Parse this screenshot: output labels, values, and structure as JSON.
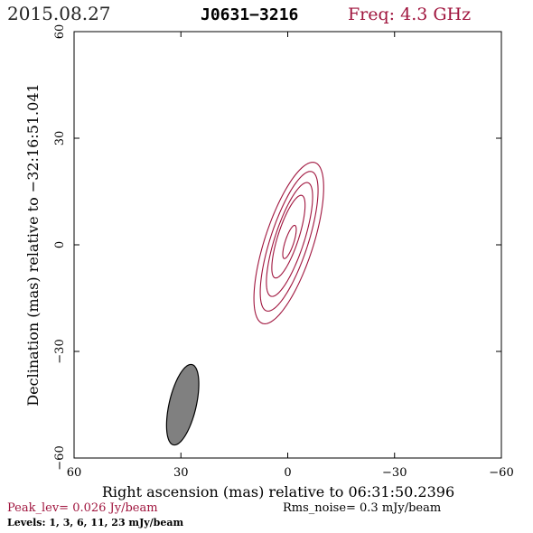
{
  "header": {
    "date": "2015.08.27",
    "source": "J0631−3216",
    "frequency": "Freq: 4.3 GHz"
  },
  "footer": {
    "peak": "Peak_lev=  0.026 Jy/beam",
    "rms": "Rms_noise=  0.3 mJy/beam",
    "levels": "Levels:   1,   3,   6,  11,  23 mJy/beam"
  },
  "colors": {
    "contour": "#a0153e",
    "beam_fill": "#808080",
    "axes": "#000000"
  },
  "chart_data": {
    "type": "contour",
    "xlabel": "Right ascension (mas) relative to 06:31:50.2396",
    "ylabel": "Declination (mas) relative to −32:16:51.041",
    "xlim": [
      60,
      -60
    ],
    "ylim": [
      -60,
      60
    ],
    "x_ticks": [
      60,
      30,
      0,
      -30,
      -60
    ],
    "y_ticks": [
      -60,
      -30,
      0,
      30,
      60
    ],
    "x_tick_labels": [
      "60",
      "30",
      "0",
      "−30",
      "−60"
    ],
    "y_tick_labels": [
      "−60",
      "−30",
      "0",
      "30",
      "60"
    ],
    "levels_mJy_per_beam": [
      1,
      3,
      6,
      11,
      23
    ],
    "peak_Jy_per_beam": 0.026,
    "rms_mJy_per_beam": 0.3,
    "contours": [
      {
        "level": 1,
        "cx": -0.3,
        "cy": 0.5,
        "a": 23.8,
        "b": 6.8,
        "pa_deg": -18
      },
      {
        "level": 3,
        "cx": -0.4,
        "cy": 1.0,
        "a": 20.6,
        "b": 5.3,
        "pa_deg": -18
      },
      {
        "level": 6,
        "cx": -0.5,
        "cy": 1.5,
        "a": 16.8,
        "b": 4.1,
        "pa_deg": -18
      },
      {
        "level": 11,
        "cx": -0.2,
        "cy": 2.3,
        "a": 12.2,
        "b": 2.9,
        "pa_deg": -18
      },
      {
        "level": 23,
        "cx": -0.5,
        "cy": 0.8,
        "a": 4.9,
        "b": 1.2,
        "pa_deg": -18
      }
    ],
    "beam": {
      "cx": 29.5,
      "cy": -45.0,
      "a": 11.6,
      "b": 3.8,
      "pa_deg": -13
    }
  }
}
